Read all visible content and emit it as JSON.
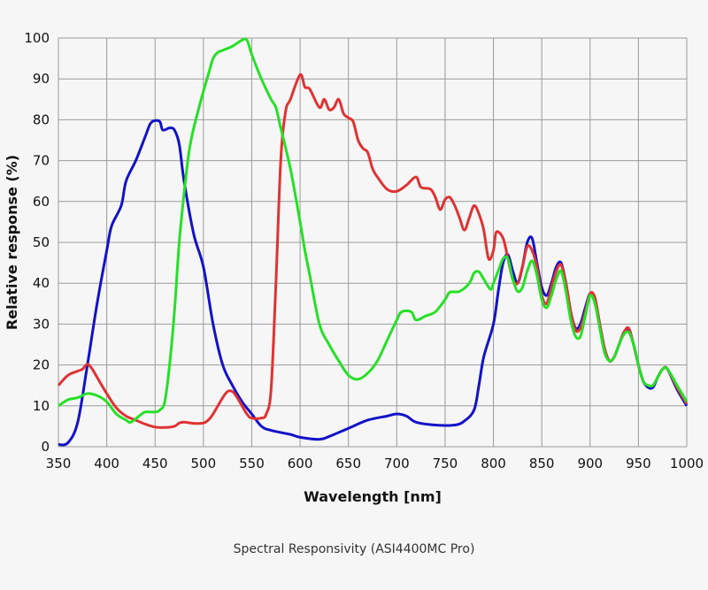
{
  "chart_data": {
    "type": "line",
    "title": "Spectral Responsivity (ASI4400MC Pro)",
    "xlabel": "Wavelength [nm]",
    "ylabel": "Relative response (%)",
    "xlim": [
      350,
      1000
    ],
    "ylim": [
      0,
      100
    ],
    "xticks": [
      350,
      400,
      450,
      500,
      550,
      600,
      650,
      700,
      750,
      800,
      850,
      900,
      950,
      1000
    ],
    "yticks": [
      0,
      10,
      20,
      30,
      40,
      50,
      60,
      70,
      80,
      90,
      100
    ],
    "grid": true,
    "series": [
      {
        "name": "Blue",
        "color": "#1212c8",
        "points": [
          [
            350,
            0.5
          ],
          [
            360,
            1
          ],
          [
            370,
            6
          ],
          [
            380,
            20
          ],
          [
            390,
            35
          ],
          [
            400,
            48
          ],
          [
            405,
            54
          ],
          [
            415,
            59
          ],
          [
            420,
            65
          ],
          [
            430,
            70
          ],
          [
            440,
            76
          ],
          [
            445,
            79
          ],
          [
            450,
            79.8
          ],
          [
            455,
            79.5
          ],
          [
            458,
            77.5
          ],
          [
            465,
            78
          ],
          [
            470,
            77.5
          ],
          [
            475,
            74
          ],
          [
            480,
            65
          ],
          [
            490,
            52
          ],
          [
            500,
            44
          ],
          [
            510,
            30
          ],
          [
            520,
            20
          ],
          [
            530,
            15
          ],
          [
            540,
            11
          ],
          [
            550,
            8
          ],
          [
            560,
            5
          ],
          [
            570,
            4
          ],
          [
            590,
            3
          ],
          [
            600,
            2.3
          ],
          [
            620,
            1.8
          ],
          [
            630,
            2.5
          ],
          [
            650,
            4.5
          ],
          [
            670,
            6.5
          ],
          [
            690,
            7.5
          ],
          [
            700,
            8
          ],
          [
            710,
            7.5
          ],
          [
            720,
            6
          ],
          [
            740,
            5.3
          ],
          [
            760,
            5.3
          ],
          [
            770,
            6.3
          ],
          [
            780,
            9
          ],
          [
            785,
            15
          ],
          [
            790,
            22
          ],
          [
            800,
            30
          ],
          [
            805,
            38
          ],
          [
            810,
            45
          ],
          [
            815,
            47
          ],
          [
            820,
            43
          ],
          [
            825,
            40
          ],
          [
            830,
            44
          ],
          [
            835,
            50
          ],
          [
            840,
            51
          ],
          [
            845,
            45
          ],
          [
            850,
            39
          ],
          [
            855,
            37
          ],
          [
            860,
            40
          ],
          [
            865,
            44
          ],
          [
            870,
            45
          ],
          [
            875,
            40
          ],
          [
            880,
            33
          ],
          [
            885,
            29
          ],
          [
            890,
            30
          ],
          [
            895,
            34
          ],
          [
            900,
            37.5
          ],
          [
            905,
            36
          ],
          [
            910,
            30
          ],
          [
            915,
            24
          ],
          [
            920,
            21
          ],
          [
            925,
            22
          ],
          [
            930,
            25
          ],
          [
            935,
            28
          ],
          [
            940,
            28.5
          ],
          [
            945,
            25
          ],
          [
            950,
            20
          ],
          [
            955,
            16
          ],
          [
            960,
            14.5
          ],
          [
            965,
            14.5
          ],
          [
            970,
            17
          ],
          [
            975,
            19
          ],
          [
            980,
            19
          ],
          [
            990,
            14
          ],
          [
            1000,
            10
          ]
        ]
      },
      {
        "name": "Red",
        "color": "#e03232",
        "points": [
          [
            350,
            15
          ],
          [
            360,
            17.5
          ],
          [
            370,
            18.5
          ],
          [
            375,
            19
          ],
          [
            380,
            20.2
          ],
          [
            385,
            19
          ],
          [
            390,
            17
          ],
          [
            400,
            13
          ],
          [
            410,
            9.5
          ],
          [
            420,
            7.5
          ],
          [
            430,
            6.5
          ],
          [
            440,
            5.5
          ],
          [
            450,
            4.8
          ],
          [
            460,
            4.7
          ],
          [
            470,
            5
          ],
          [
            475,
            5.8
          ],
          [
            480,
            6
          ],
          [
            490,
            5.7
          ],
          [
            500,
            5.8
          ],
          [
            505,
            6.5
          ],
          [
            510,
            8
          ],
          [
            520,
            12
          ],
          [
            525,
            13.5
          ],
          [
            530,
            13.5
          ],
          [
            535,
            12
          ],
          [
            545,
            8
          ],
          [
            550,
            7
          ],
          [
            560,
            7
          ],
          [
            565,
            8
          ],
          [
            570,
            14
          ],
          [
            575,
            40
          ],
          [
            580,
            70
          ],
          [
            585,
            82
          ],
          [
            590,
            85
          ],
          [
            600,
            91
          ],
          [
            605,
            88
          ],
          [
            610,
            87.5
          ],
          [
            620,
            83
          ],
          [
            625,
            85
          ],
          [
            630,
            82.5
          ],
          [
            635,
            83
          ],
          [
            640,
            85
          ],
          [
            645,
            81.5
          ],
          [
            650,
            80.5
          ],
          [
            655,
            79.5
          ],
          [
            660,
            75
          ],
          [
            665,
            73
          ],
          [
            670,
            72
          ],
          [
            675,
            68
          ],
          [
            680,
            66
          ],
          [
            690,
            63
          ],
          [
            700,
            62.5
          ],
          [
            710,
            64
          ],
          [
            720,
            66
          ],
          [
            725,
            63.5
          ],
          [
            735,
            63
          ],
          [
            740,
            61
          ],
          [
            745,
            58
          ],
          [
            750,
            60.5
          ],
          [
            755,
            61
          ],
          [
            760,
            59
          ],
          [
            765,
            56
          ],
          [
            770,
            53
          ],
          [
            775,
            56
          ],
          [
            780,
            59
          ],
          [
            785,
            57
          ],
          [
            790,
            53
          ],
          [
            795,
            46
          ],
          [
            800,
            48
          ],
          [
            803,
            52.5
          ],
          [
            810,
            51
          ],
          [
            815,
            46
          ],
          [
            820,
            41
          ],
          [
            825,
            40
          ],
          [
            830,
            44
          ],
          [
            835,
            49
          ],
          [
            840,
            48
          ],
          [
            845,
            44
          ],
          [
            850,
            37
          ],
          [
            855,
            35
          ],
          [
            860,
            39
          ],
          [
            865,
            43
          ],
          [
            870,
            44.5
          ],
          [
            875,
            40
          ],
          [
            880,
            33
          ],
          [
            885,
            28.5
          ],
          [
            890,
            29
          ],
          [
            895,
            33
          ],
          [
            900,
            37.5
          ],
          [
            905,
            36.5
          ],
          [
            910,
            30
          ],
          [
            915,
            24
          ],
          [
            920,
            21
          ],
          [
            925,
            22
          ],
          [
            930,
            25
          ],
          [
            935,
            28
          ],
          [
            940,
            29
          ],
          [
            945,
            25
          ],
          [
            950,
            20
          ],
          [
            955,
            16
          ],
          [
            960,
            15
          ],
          [
            965,
            15
          ],
          [
            970,
            17
          ],
          [
            975,
            19
          ],
          [
            980,
            19
          ],
          [
            990,
            14.5
          ],
          [
            1000,
            10.5
          ]
        ]
      },
      {
        "name": "Green",
        "color": "#26e026",
        "points": [
          [
            350,
            10
          ],
          [
            360,
            11.5
          ],
          [
            370,
            12
          ],
          [
            380,
            13
          ],
          [
            390,
            12.5
          ],
          [
            400,
            11
          ],
          [
            410,
            8
          ],
          [
            420,
            6.5
          ],
          [
            425,
            6
          ],
          [
            435,
            7.8
          ],
          [
            440,
            8.5
          ],
          [
            450,
            8.5
          ],
          [
            455,
            9
          ],
          [
            460,
            11
          ],
          [
            465,
            20
          ],
          [
            470,
            33
          ],
          [
            475,
            50
          ],
          [
            480,
            62
          ],
          [
            485,
            72
          ],
          [
            490,
            78
          ],
          [
            500,
            87
          ],
          [
            505,
            91
          ],
          [
            510,
            95
          ],
          [
            515,
            96.5
          ],
          [
            520,
            97
          ],
          [
            530,
            98
          ],
          [
            540,
            99.5
          ],
          [
            545,
            99.5
          ],
          [
            550,
            96
          ],
          [
            560,
            90
          ],
          [
            570,
            85
          ],
          [
            575,
            83
          ],
          [
            580,
            78
          ],
          [
            590,
            68
          ],
          [
            600,
            55
          ],
          [
            605,
            48
          ],
          [
            610,
            42
          ],
          [
            620,
            30
          ],
          [
            630,
            25
          ],
          [
            640,
            21
          ],
          [
            650,
            17.5
          ],
          [
            660,
            16.5
          ],
          [
            670,
            18
          ],
          [
            680,
            21
          ],
          [
            690,
            26
          ],
          [
            700,
            31
          ],
          [
            705,
            33
          ],
          [
            715,
            33
          ],
          [
            720,
            31
          ],
          [
            730,
            32
          ],
          [
            740,
            33
          ],
          [
            750,
            36
          ],
          [
            755,
            37.8
          ],
          [
            765,
            38
          ],
          [
            775,
            40
          ],
          [
            780,
            42.5
          ],
          [
            785,
            42.8
          ],
          [
            790,
            41
          ],
          [
            797,
            38.5
          ],
          [
            800,
            40
          ],
          [
            805,
            43
          ],
          [
            810,
            46
          ],
          [
            815,
            46
          ],
          [
            820,
            41
          ],
          [
            825,
            38
          ],
          [
            830,
            39
          ],
          [
            835,
            43
          ],
          [
            840,
            45.5
          ],
          [
            845,
            42
          ],
          [
            850,
            36
          ],
          [
            855,
            34
          ],
          [
            860,
            37
          ],
          [
            865,
            41
          ],
          [
            870,
            43
          ],
          [
            875,
            38
          ],
          [
            880,
            31
          ],
          [
            885,
            27
          ],
          [
            890,
            27
          ],
          [
            895,
            32
          ],
          [
            900,
            37
          ],
          [
            905,
            35
          ],
          [
            910,
            29
          ],
          [
            915,
            23
          ],
          [
            920,
            21
          ],
          [
            925,
            22
          ],
          [
            930,
            25
          ],
          [
            935,
            27.5
          ],
          [
            940,
            28
          ],
          [
            945,
            25
          ],
          [
            950,
            20
          ],
          [
            955,
            16
          ],
          [
            960,
            15
          ],
          [
            965,
            15
          ],
          [
            970,
            17
          ],
          [
            975,
            19
          ],
          [
            980,
            19
          ],
          [
            990,
            15
          ],
          [
            1000,
            11
          ]
        ]
      }
    ]
  }
}
